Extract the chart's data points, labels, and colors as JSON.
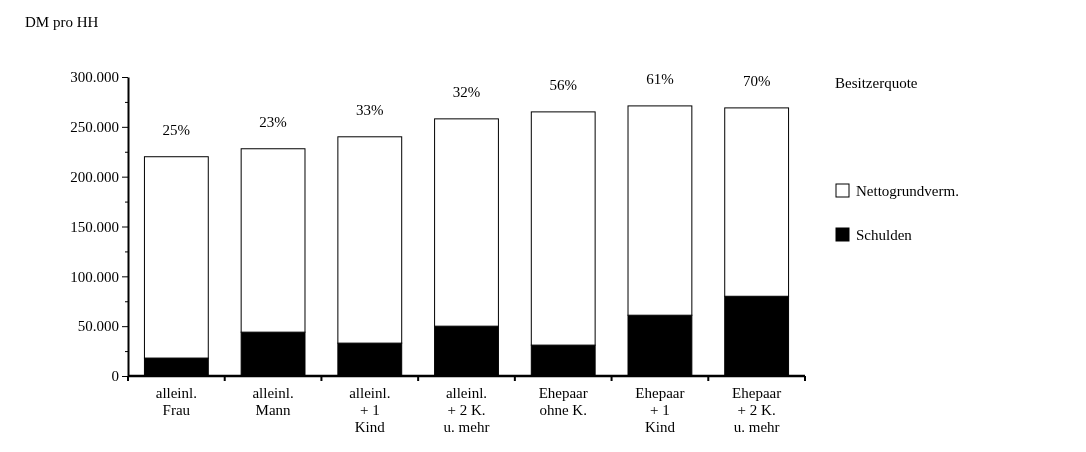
{
  "chart_data": {
    "type": "bar",
    "stacked": true,
    "ylabel": "DM pro HH",
    "categories": [
      "alleinl.\nFrau",
      "alleinl.\nMann",
      "alleinl.\n+ 1\nKind",
      "alleinl.\n+ 2 K.\nu. mehr",
      "Ehepaar\nohne K.",
      "Ehepaar\n+ 1\nKind",
      "Ehepaar\n+ 2 K.\nu. mehr"
    ],
    "series": [
      {
        "name": "Schulden",
        "color": "#000000",
        "values": [
          18000,
          44000,
          33000,
          50000,
          31000,
          61000,
          80000
        ]
      },
      {
        "name": "Nettogrundverm.",
        "color": "#ffffff",
        "values": [
          202000,
          184000,
          207000,
          208000,
          234000,
          210000,
          189000
        ]
      }
    ],
    "ylim": [
      0,
      300000
    ],
    "yticks": [
      {
        "value": 0,
        "label": "0"
      },
      {
        "value": 25000,
        "label": null
      },
      {
        "value": 50000,
        "label": "50.000"
      },
      {
        "value": 75000,
        "label": null
      },
      {
        "value": 100000,
        "label": "100.000"
      },
      {
        "value": 125000,
        "label": null
      },
      {
        "value": 150000,
        "label": "150.000"
      },
      {
        "value": 175000,
        "label": null
      },
      {
        "value": 200000,
        "label": "200.000"
      },
      {
        "value": 225000,
        "label": null
      },
      {
        "value": 250000,
        "label": "250.000"
      },
      {
        "value": 275000,
        "label": null
      },
      {
        "value": 300000,
        "label": "300.000"
      }
    ],
    "legend": "right",
    "annotations": [
      "Besitzerquote",
      "25%",
      "23%",
      "33%",
      "32%",
      "56%",
      "61%",
      "70%"
    ]
  }
}
